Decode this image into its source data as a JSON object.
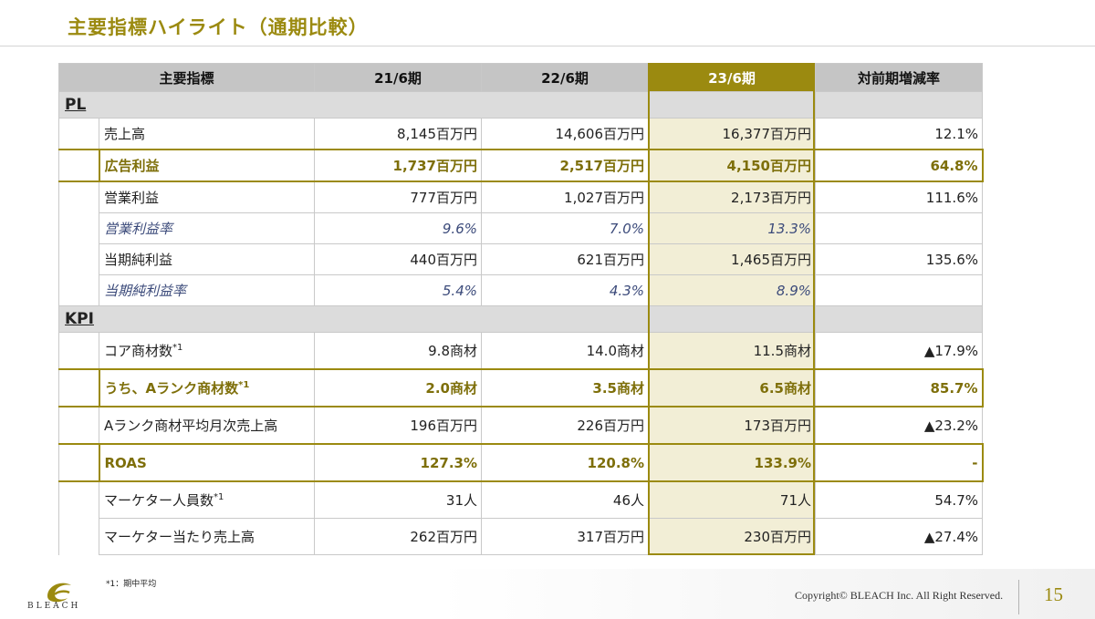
{
  "title": "主要指標ハイライト（通期比較）",
  "colors": {
    "accent": "#9b8a10",
    "highlight_bg": "#f2eed6",
    "header_bg": "#c5c5c5",
    "italic_text": "#3b4a7a"
  },
  "table": {
    "headers": [
      "主要指標",
      "21/6期",
      "22/6期",
      "23/6期",
      "対前期増減率"
    ],
    "sections": {
      "pl": "PL",
      "kpi": "KPI"
    },
    "pl_rows": [
      {
        "label": "売上高",
        "v21": "8,145百万円",
        "v22": "14,606百万円",
        "v23": "16,377百万円",
        "change": "12.1%"
      },
      {
        "label": "広告利益",
        "v21": "1,737百万円",
        "v22": "2,517百万円",
        "v23": "4,150百万円",
        "change": "64.8%"
      },
      {
        "label": "営業利益",
        "v21": "777百万円",
        "v22": "1,027百万円",
        "v23": "2,173百万円",
        "change": "111.6%"
      },
      {
        "label": "営業利益率",
        "v21": "9.6%",
        "v22": "7.0%",
        "v23": "13.3%",
        "change": ""
      },
      {
        "label": "当期純利益",
        "v21": "440百万円",
        "v22": "621百万円",
        "v23": "1,465百万円",
        "change": "135.6%"
      },
      {
        "label": "当期純利益率",
        "v21": "5.4%",
        "v22": "4.3%",
        "v23": "8.9%",
        "change": ""
      }
    ],
    "kpi_rows": [
      {
        "label": "コア商材数",
        "sup": "*1",
        "v21": "9.8商材",
        "v22": "14.0商材",
        "v23": "11.5商材",
        "change": "▲17.9%"
      },
      {
        "label": "うち、Aランク商材数",
        "sup": "*1",
        "v21": "2.0商材",
        "v22": "3.5商材",
        "v23": "6.5商材",
        "change": "85.7%"
      },
      {
        "label": "Aランク商材平均月次売上高",
        "v21": "196百万円",
        "v22": "226百万円",
        "v23": "173百万円",
        "change": "▲23.2%"
      },
      {
        "label": "ROAS",
        "v21": "127.3%",
        "v22": "120.8%",
        "v23": "133.9%",
        "change": "-"
      },
      {
        "label": "マーケター人員数",
        "sup": "*1",
        "v21": "31人",
        "v22": "46人",
        "v23": "71人",
        "change": "54.7%"
      },
      {
        "label": "マーケター当たり売上高",
        "v21": "262百万円",
        "v22": "317百万円",
        "v23": "230百万円",
        "change": "▲27.4%"
      }
    ]
  },
  "footnote": "*1：期中平均",
  "footer": {
    "logo_text": "BLEACH",
    "logo_icon": "bleach-swirl-logo",
    "copyright": "Copyright© BLEACH Inc. All Right Reserved.",
    "page_number": "15"
  }
}
